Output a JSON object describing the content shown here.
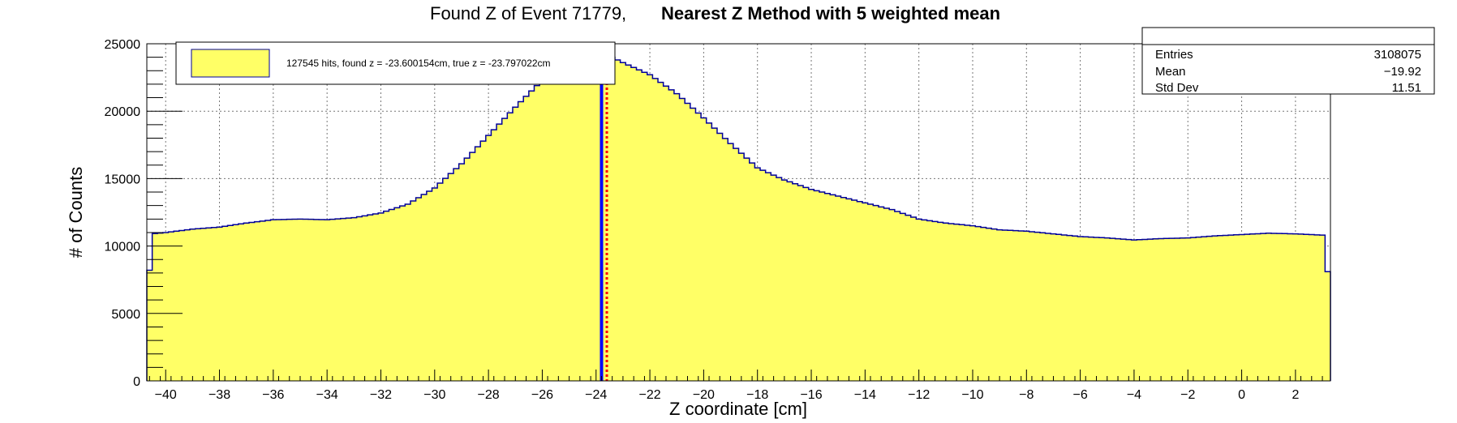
{
  "title": {
    "part1": "Found Z of Event 71779,",
    "part2": "Nearest Z Method with 5 weighted mean"
  },
  "legend": {
    "text": "127545 hits, found z = -23.600154cm, true z = -23.797022cm"
  },
  "stats": {
    "rows": [
      {
        "label": "Entries",
        "value": "3108075"
      },
      {
        "label": "Mean",
        "value": "−19.92"
      },
      {
        "label": "Std Dev",
        "value": "11.51"
      }
    ]
  },
  "colors": {
    "fill": "#ffff66",
    "outline": "#000099",
    "found_line": "#0000ff",
    "true_line": "#ff0000"
  },
  "chart_data": {
    "type": "bar",
    "title": "Found Z of Event 71779, Nearest Z Method with 5 weighted mean",
    "xlabel": "Z coordinate [cm]",
    "ylabel": "# of Counts",
    "xlim": [
      -40.7,
      3.3
    ],
    "ylim": [
      0,
      25000
    ],
    "grid": true,
    "legend_position": "top-left",
    "x_ticks": [
      -40,
      -38,
      -36,
      -34,
      -32,
      -30,
      -28,
      -26,
      -24,
      -22,
      -20,
      -18,
      -16,
      -14,
      -12,
      -10,
      -8,
      -6,
      -4,
      -2,
      0,
      2
    ],
    "y_ticks": [
      0,
      5000,
      10000,
      15000,
      20000,
      25000
    ],
    "x_tick_labels": [
      "−40",
      "−38",
      "−36",
      "−34",
      "−32",
      "−30",
      "−28",
      "−26",
      "−24",
      "−22",
      "−20",
      "−18",
      "−16",
      "−14",
      "−12",
      "−10",
      "−8",
      "−6",
      "−4",
      "−2",
      "0",
      "2"
    ],
    "y_tick_labels": [
      "0",
      "5000",
      "10000",
      "15000",
      "20000",
      "25000"
    ],
    "vertical_lines": [
      {
        "x": -23.797022,
        "style": "solid",
        "color": "blue"
      },
      {
        "x": -23.600154,
        "style": "dotted",
        "color": "red"
      }
    ],
    "histogram_profile": [
      [
        -40.7,
        5500
      ],
      [
        -40.5,
        10900
      ],
      [
        -40.0,
        11000
      ],
      [
        -39.0,
        11250
      ],
      [
        -38.0,
        11400
      ],
      [
        -37.0,
        11700
      ],
      [
        -36.0,
        11950
      ],
      [
        -35.0,
        12000
      ],
      [
        -34.0,
        11950
      ],
      [
        -33.0,
        12100
      ],
      [
        -32.0,
        12450
      ],
      [
        -31.0,
        13100
      ],
      [
        -30.0,
        14300
      ],
      [
        -29.0,
        16100
      ],
      [
        -28.0,
        18200
      ],
      [
        -27.0,
        20300
      ],
      [
        -26.0,
        22300
      ],
      [
        -25.0,
        23700
      ],
      [
        -24.5,
        24100
      ],
      [
        -23.5,
        24100
      ],
      [
        -23.0,
        23600
      ],
      [
        -22.0,
        22700
      ],
      [
        -21.0,
        21300
      ],
      [
        -20.0,
        19500
      ],
      [
        -19.0,
        17600
      ],
      [
        -18.0,
        15800
      ],
      [
        -17.0,
        14900
      ],
      [
        -16.0,
        14200
      ],
      [
        -15.0,
        13700
      ],
      [
        -14.0,
        13200
      ],
      [
        -13.0,
        12700
      ],
      [
        -12.0,
        12000
      ],
      [
        -11.0,
        11700
      ],
      [
        -10.0,
        11500
      ],
      [
        -9.0,
        11200
      ],
      [
        -8.0,
        11100
      ],
      [
        -7.0,
        10900
      ],
      [
        -6.0,
        10700
      ],
      [
        -5.0,
        10600
      ],
      [
        -4.0,
        10450
      ],
      [
        -3.0,
        10550
      ],
      [
        -2.0,
        10600
      ],
      [
        -1.0,
        10750
      ],
      [
        0.0,
        10850
      ],
      [
        1.0,
        10950
      ],
      [
        2.0,
        10900
      ],
      [
        3.1,
        10800
      ],
      [
        3.3,
        5400
      ]
    ]
  }
}
